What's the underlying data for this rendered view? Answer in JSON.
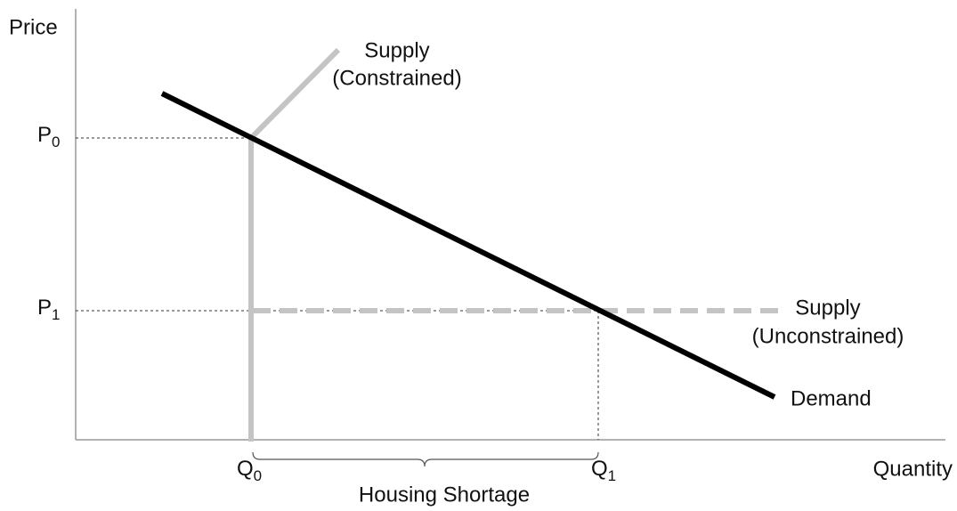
{
  "axes": {
    "y_label": "Price",
    "x_label": "Quantity"
  },
  "price_levels": [
    {
      "base": "P",
      "sub": "0"
    },
    {
      "base": "P",
      "sub": "1"
    }
  ],
  "quantity_levels": [
    {
      "base": "Q",
      "sub": "0"
    },
    {
      "base": "Q",
      "sub": "1"
    }
  ],
  "curves": {
    "supply_constrained": [
      "Supply",
      "(Constrained)"
    ],
    "supply_unconstrained": [
      "Supply",
      "(Unconstrained)"
    ],
    "demand": "Demand"
  },
  "gap_label": "Housing Shortage"
}
